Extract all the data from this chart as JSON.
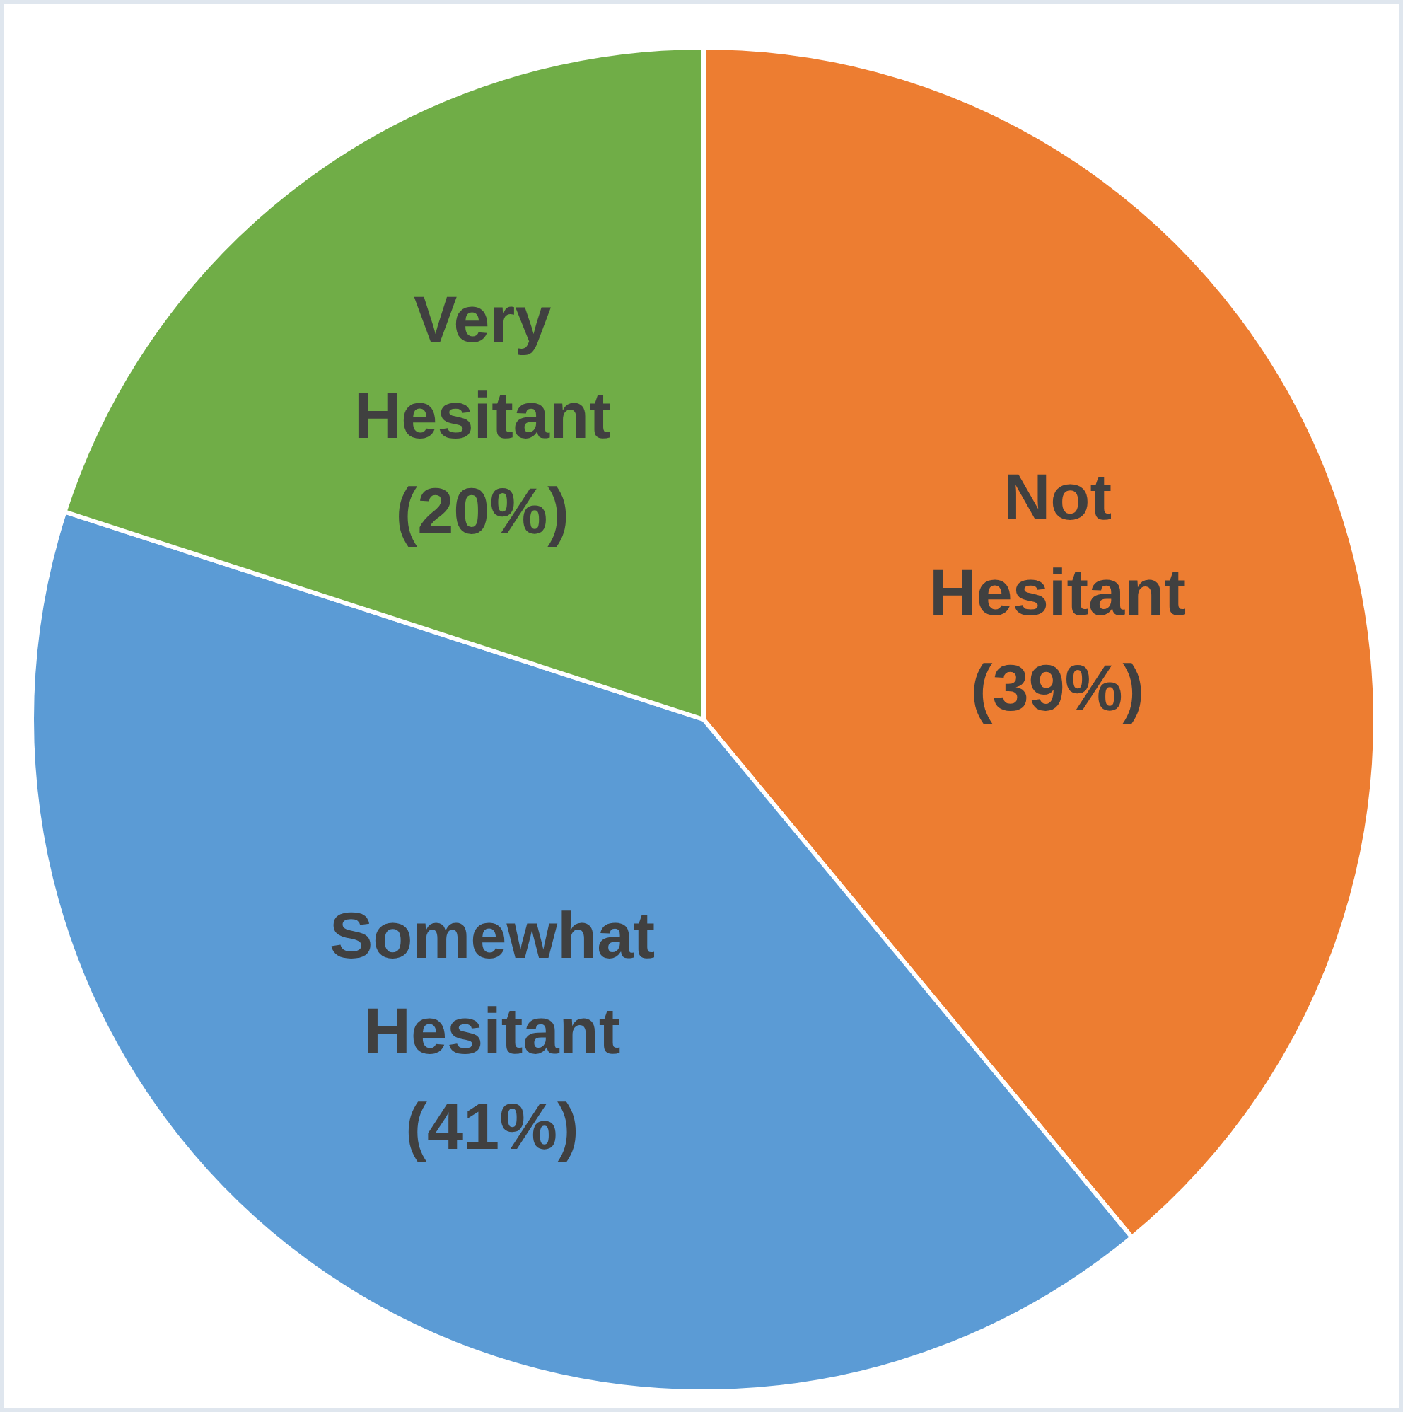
{
  "chart_data": {
    "type": "pie",
    "categories": [
      "Not Hesitant",
      "Somewhat Hesitant",
      "Very Hesitant"
    ],
    "values": [
      39,
      41,
      20
    ],
    "colors": [
      "#ed7d31",
      "#5b9bd5",
      "#70ad47"
    ],
    "value_labels": [
      "(39%)",
      "(41%)",
      "(20%)"
    ]
  }
}
